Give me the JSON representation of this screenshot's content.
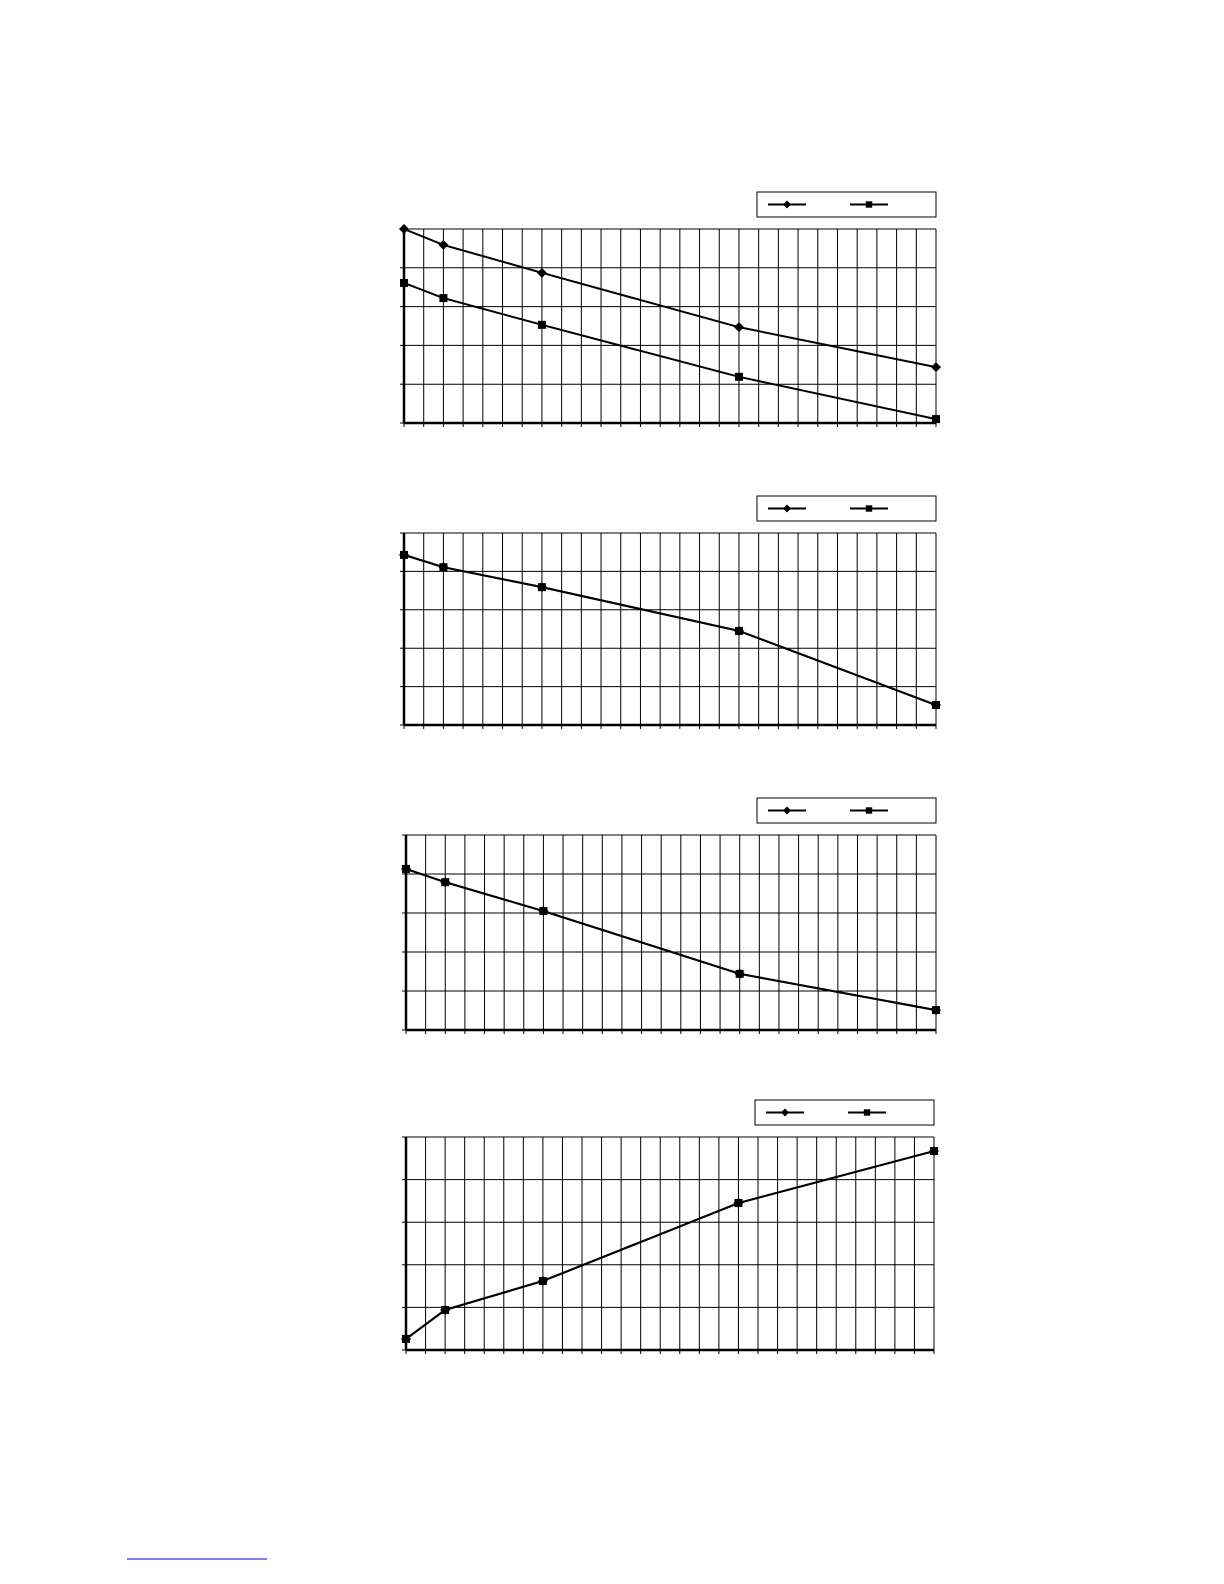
{
  "chart_data": [
    {
      "type": "line",
      "x": [
        0,
        2,
        7,
        17,
        27
      ],
      "xlim": [
        0,
        27
      ],
      "xticks": [
        0,
        1,
        2,
        3,
        4,
        5,
        6,
        7,
        8,
        9,
        10,
        11,
        12,
        13,
        14,
        15,
        16,
        17,
        18,
        19,
        20,
        21,
        22,
        23,
        24,
        25,
        26,
        27
      ],
      "ylim": [
        0,
        5
      ],
      "yticks": [
        0,
        1,
        2,
        3,
        4,
        5
      ],
      "grid": true,
      "legend": "top-right",
      "series": [
        {
          "color": "#000000",
          "marker": "diamond",
          "values": [
            5.0,
            4.59,
            3.87,
            2.47,
            1.44
          ]
        },
        {
          "color": "#000000",
          "marker": "square",
          "values": [
            3.61,
            3.22,
            2.53,
            1.19,
            0.1
          ]
        }
      ]
    },
    {
      "type": "line",
      "x": [
        0,
        2,
        7,
        17,
        27
      ],
      "xlim": [
        0,
        27
      ],
      "xticks": [
        0,
        1,
        2,
        3,
        4,
        5,
        6,
        7,
        8,
        9,
        10,
        11,
        12,
        13,
        14,
        15,
        16,
        17,
        18,
        19,
        20,
        21,
        22,
        23,
        24,
        25,
        26,
        27
      ],
      "ylim": [
        0,
        5
      ],
      "yticks": [
        0,
        1,
        2,
        3,
        4,
        5
      ],
      "grid": true,
      "legend": "top-right",
      "series": [
        {
          "color": "#000000",
          "marker": "diamond",
          "values": [
            4.43,
            4.11,
            3.59,
            2.45,
            0.52
          ]
        },
        {
          "color": "#000000",
          "marker": "square",
          "values": [
            4.43,
            4.11,
            3.59,
            2.45,
            0.52
          ]
        }
      ]
    },
    {
      "type": "line",
      "x": [
        0,
        2,
        7,
        17,
        27
      ],
      "xlim": [
        0,
        27
      ],
      "xticks": [
        0,
        1,
        2,
        3,
        4,
        5,
        6,
        7,
        8,
        9,
        10,
        11,
        12,
        13,
        14,
        15,
        16,
        17,
        18,
        19,
        20,
        21,
        22,
        23,
        24,
        25,
        26,
        27
      ],
      "ylim": [
        0,
        5
      ],
      "yticks": [
        0,
        1,
        2,
        3,
        4,
        5
      ],
      "grid": true,
      "legend": "top-right",
      "series": [
        {
          "color": "#000000",
          "marker": "diamond",
          "values": [
            4.13,
            3.79,
            3.05,
            1.44,
            0.51
          ]
        },
        {
          "color": "#000000",
          "marker": "square",
          "values": [
            4.13,
            3.79,
            3.05,
            1.44,
            0.51
          ]
        }
      ]
    },
    {
      "type": "line",
      "x": [
        0,
        2,
        7,
        17,
        27
      ],
      "xlim": [
        0,
        27
      ],
      "xticks": [
        0,
        1,
        2,
        3,
        4,
        5,
        6,
        7,
        8,
        9,
        10,
        11,
        12,
        13,
        14,
        15,
        16,
        17,
        18,
        19,
        20,
        21,
        22,
        23,
        24,
        25,
        26,
        27
      ],
      "ylim": [
        0,
        5
      ],
      "yticks": [
        0,
        1,
        2,
        3,
        4,
        5
      ],
      "grid": true,
      "legend": "top-right",
      "series": [
        {
          "color": "#000000",
          "marker": "diamond",
          "values": [
            0.26,
            0.94,
            1.62,
            3.45,
            4.67
          ]
        },
        {
          "color": "#000000",
          "marker": "square",
          "values": [
            0.26,
            0.94,
            1.62,
            3.45,
            4.67
          ]
        }
      ]
    }
  ]
}
